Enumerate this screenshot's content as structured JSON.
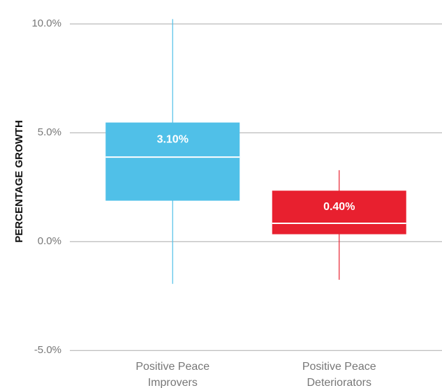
{
  "chart_data": {
    "type": "box",
    "ylabel": "PERCENTAGE GROWTH",
    "categories": [
      "Positive Peace Improvers",
      "Positive Peace Deteriorators"
    ],
    "colors": [
      "#50c0e8",
      "#e8202f"
    ],
    "low": [
      -1.94,
      -1.75
    ],
    "q1": [
      1.88,
      0.34
    ],
    "median": [
      3.88,
      0.84
    ],
    "q3": [
      5.47,
      2.34
    ],
    "high": [
      10.22,
      3.28
    ],
    "labels": [
      "3.10%",
      "0.40%"
    ],
    "ylim": [
      -5.3,
      10.7
    ],
    "yticks": [
      {
        "value": -5,
        "label": "-5.0%"
      },
      {
        "value": 0,
        "label": "0.0%"
      },
      {
        "value": 5,
        "label": "5.0%"
      },
      {
        "value": 10,
        "label": "10.0%"
      }
    ],
    "grid": true
  }
}
